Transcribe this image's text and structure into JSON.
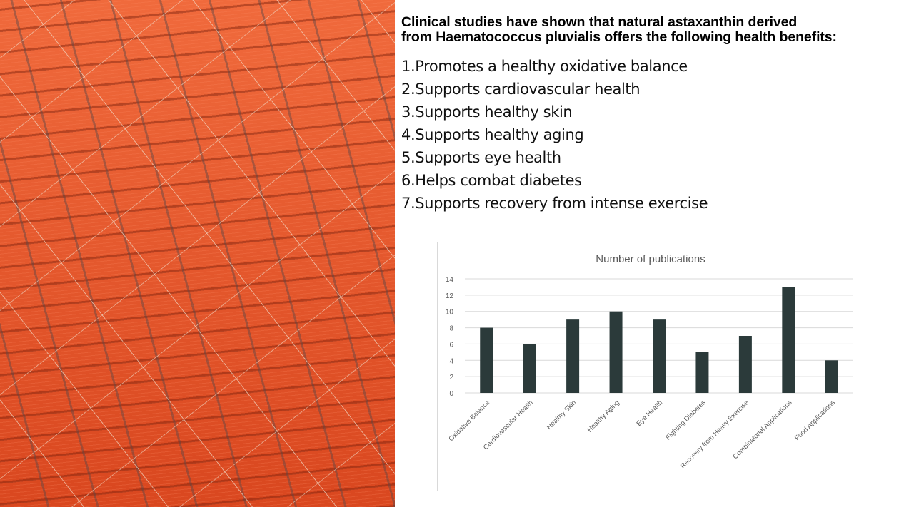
{
  "heading": {
    "line1": "Clinical studies have shown that natural astaxanthin derived",
    "line2": "from Haematococcus pluvialis offers the following health benefits:"
  },
  "benefits": [
    "1.Promotes a healthy oxidative balance",
    "2.Supports cardiovascular health",
    "3.Supports healthy skin",
    "4.Supports healthy aging",
    "5.Supports eye health",
    "6.Helps combat diabetes",
    "7.Supports recovery from intense exercise"
  ],
  "colors": {
    "bar": "#2b3a3a",
    "grid": "#d9d9d9",
    "text": "#595959"
  },
  "chart_data": {
    "type": "bar",
    "title": "Number of publications",
    "categories": [
      "Oxidative Balance",
      "Cardiovascular Health",
      "Healthy Skin",
      "Healthy Aging",
      "Eye Health",
      "Fighting Diabetes",
      "Recovery from Heavy Exercise",
      "Combinatorial Applications",
      "Food Applications"
    ],
    "values": [
      8,
      6,
      9,
      10,
      9,
      5,
      7,
      13,
      4
    ],
    "yticks": [
      0,
      2,
      4,
      6,
      8,
      10,
      12,
      14
    ],
    "ylim": [
      0,
      14
    ],
    "xlabel": "",
    "ylabel": "",
    "grid": true
  }
}
